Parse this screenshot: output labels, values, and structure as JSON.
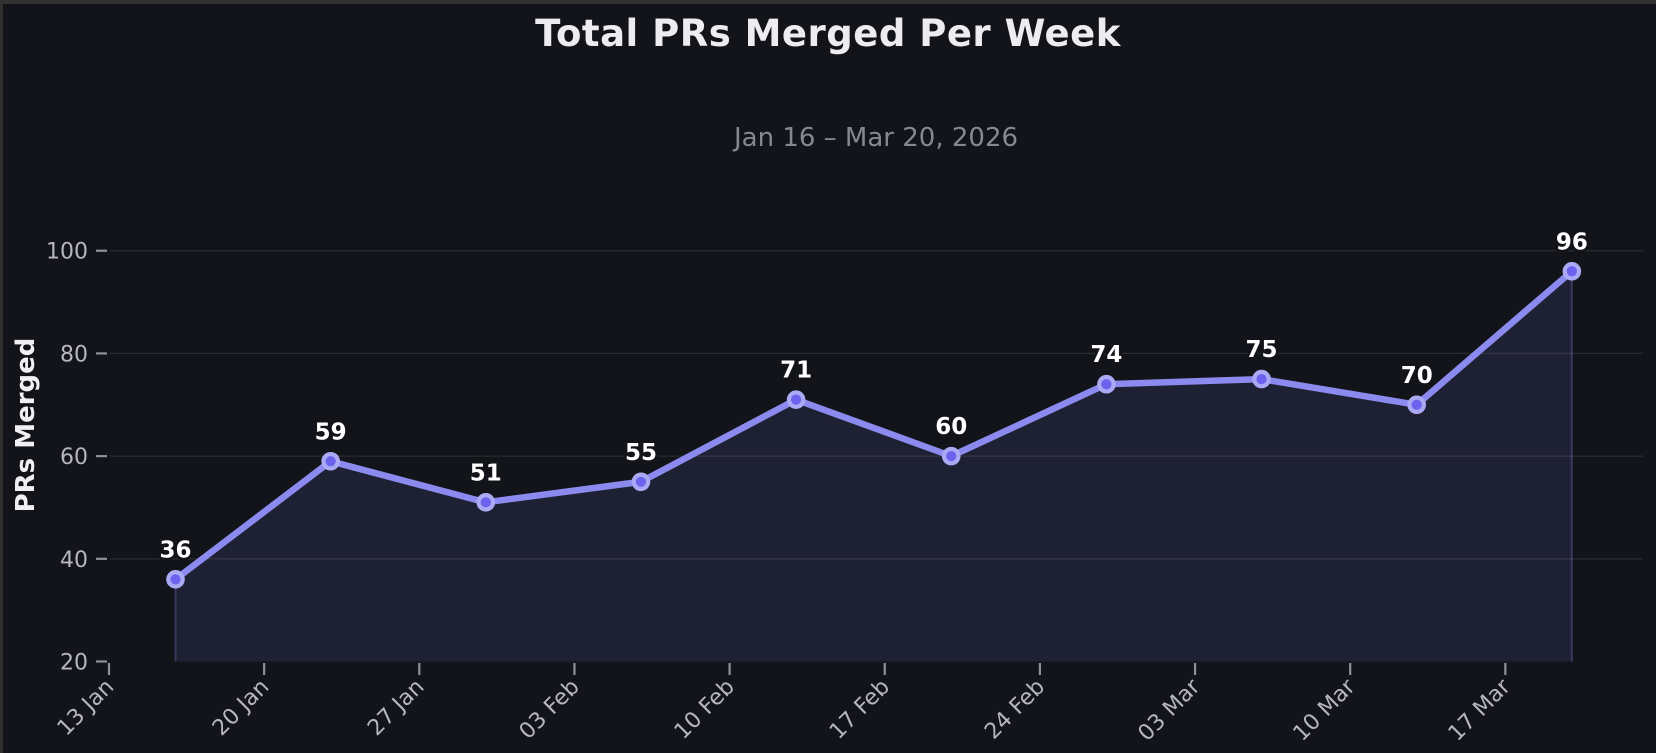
{
  "window": {
    "edge_color_top": "#323232",
    "edge_color_left": "#2f2f2f"
  },
  "chart_data": {
    "type": "line",
    "title": "Total PRs Merged Per Week",
    "subtitle": "Jan 16 – Mar 20, 2026",
    "xlabel": "",
    "ylabel": "PRs Merged",
    "series": [
      {
        "name": "PRs Merged",
        "values": [
          36,
          59,
          51,
          55,
          71,
          60,
          74,
          75,
          70,
          96
        ]
      }
    ],
    "value_labels": [
      "36",
      "59",
      "51",
      "55",
      "71",
      "60",
      "74",
      "75",
      "70",
      "96"
    ],
    "x_tick_labels": [
      "13 Jan",
      "20 Jan",
      "27 Jan",
      "03 Feb",
      "10 Feb",
      "17 Feb",
      "24 Feb",
      "03 Mar",
      "10 Mar",
      "17 Mar"
    ],
    "x_tick_rotation_deg": 45,
    "y_ticks": [
      20,
      40,
      60,
      80,
      100
    ],
    "y_tick_labels": [
      "20",
      "40",
      "60",
      "80",
      "100"
    ],
    "ylim": [
      20,
      108
    ],
    "grid": "horizontal",
    "legend": "none",
    "area_fill": true,
    "markers": true,
    "colors": {
      "background": "#12141a",
      "line": "#8b8bef",
      "marker_fill": "#6b62ee",
      "marker_ring": "#a9a9f4",
      "area_fill": "#1e2033",
      "area_edge": "rgba(139,139,239,0.28)",
      "grid_line": "rgba(255,255,255,0.10)",
      "tick_mark": "#90909a",
      "tick_label": "#b6b6bd",
      "title": "#ececf1",
      "subtitle": "#87878f",
      "value_label": "#ffffff",
      "value_label_outline": "#12141a"
    }
  }
}
